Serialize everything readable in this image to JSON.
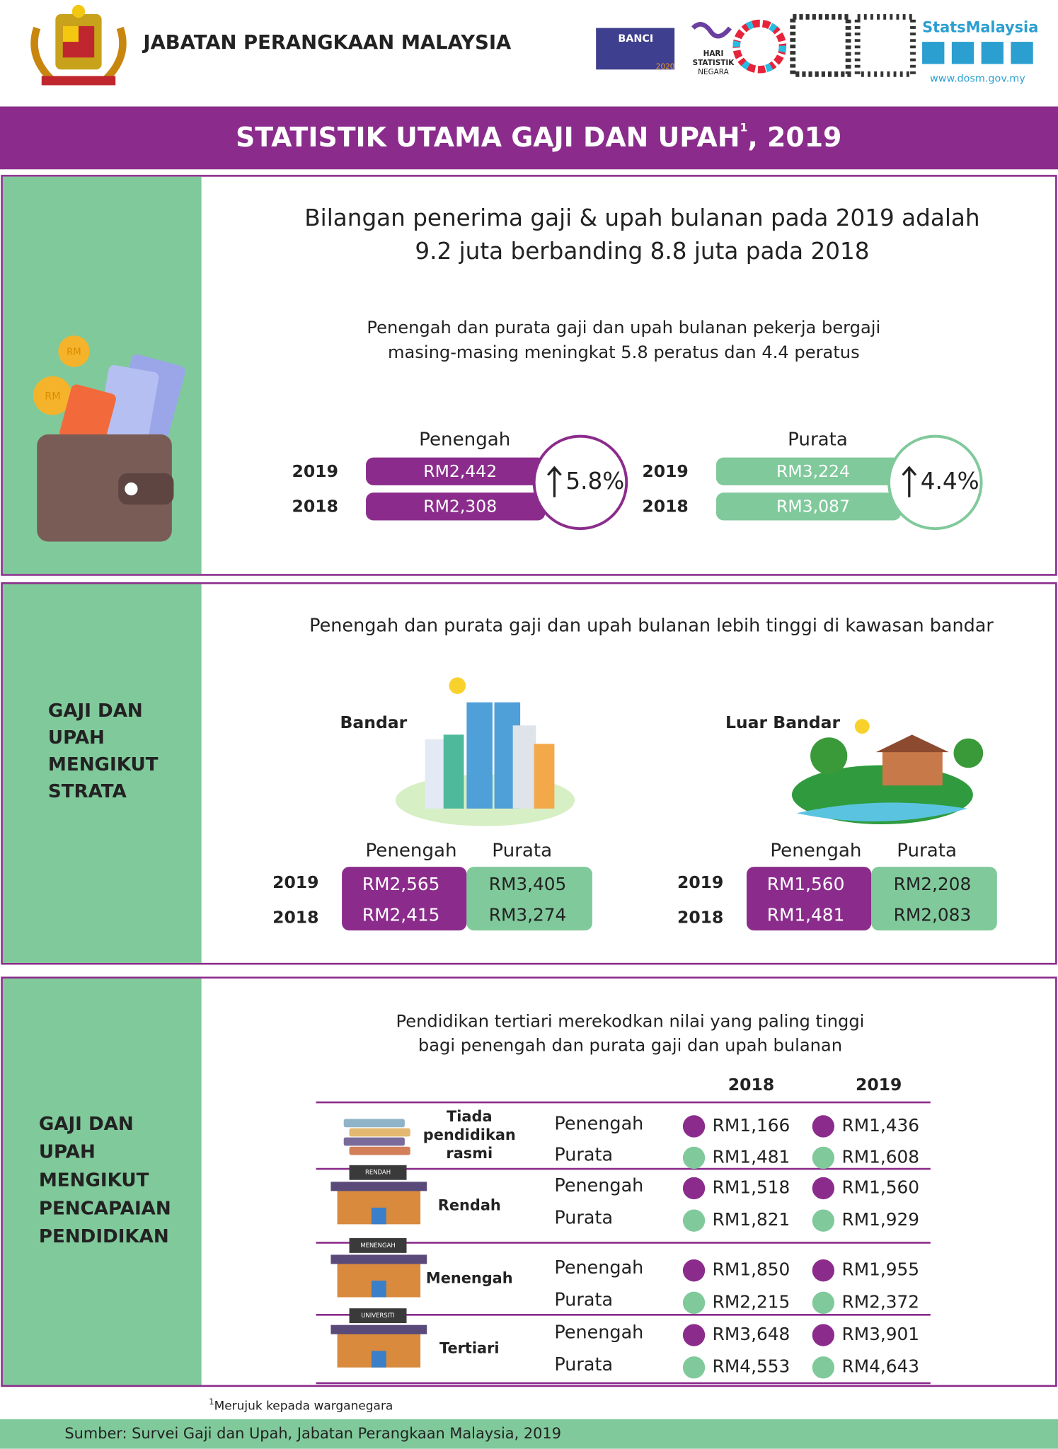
{
  "header": {
    "org": "JABATAN PERANGKAAN MALAYSIA",
    "banci": "BANCI",
    "banci_year": "2020",
    "hari": [
      "HARI",
      "STATISTIK",
      "NEGARA"
    ],
    "brand": "StatsMalaysia",
    "website": "www.dosm.gov.my"
  },
  "title": {
    "text": "STATISTIK UTAMA GAJI DAN UPAH",
    "sup": "1",
    "suffix": ", 2019"
  },
  "section1": {
    "headline": [
      "Bilangan penerima gaji & upah bulanan pada 2019 adalah",
      "9.2 juta berbanding 8.8 juta pada 2018"
    ],
    "subline": [
      "Penengah dan purata gaji dan upah bulanan pekerja bergaji",
      "masing-masing meningkat 5.8 peratus dan 4.4 peratus"
    ],
    "coin": "RM",
    "median": {
      "label": "Penengah",
      "rows": [
        {
          "year": "2019",
          "value": "RM2,442"
        },
        {
          "year": "2018",
          "value": "RM2,308"
        }
      ],
      "change": "5.8%"
    },
    "mean": {
      "label": "Purata",
      "rows": [
        {
          "year": "2019",
          "value": "RM3,224"
        },
        {
          "year": "2018",
          "value": "RM3,087"
        }
      ],
      "change": "4.4%"
    }
  },
  "section2": {
    "side_title": [
      "GAJI DAN",
      "UPAH",
      "MENGIKUT",
      "STRATA"
    ],
    "headline": "Penengah dan purata gaji dan upah bulanan lebih tinggi di kawasan bandar",
    "urban": {
      "label": "Bandar",
      "columns": [
        "Penengah",
        "Purata"
      ],
      "rows": [
        {
          "year": "2019",
          "median": "RM2,565",
          "mean": "RM3,405"
        },
        {
          "year": "2018",
          "median": "RM2,415",
          "mean": "RM3,274"
        }
      ]
    },
    "rural": {
      "label": "Luar Bandar",
      "columns": [
        "Penengah",
        "Purata"
      ],
      "rows": [
        {
          "year": "2019",
          "median": "RM1,560",
          "mean": "RM2,208"
        },
        {
          "year": "2018",
          "median": "RM1,481",
          "mean": "RM2,083"
        }
      ]
    }
  },
  "section3": {
    "side_title": [
      "GAJI DAN",
      "UPAH",
      "MENGIKUT",
      "PENCAPAIAN",
      "PENDIDIKAN"
    ],
    "headline": [
      "Pendidikan tertiari merekodkan nilai yang paling tinggi",
      "bagi penengah dan purata gaji dan upah bulanan"
    ],
    "years": [
      "2018",
      "2019"
    ],
    "groups": [
      {
        "label": [
          "Tiada",
          "pendidikan",
          "rasmi"
        ],
        "rows": [
          {
            "stat": "Penengah",
            "values": [
              "RM1,166",
              "RM1,436"
            ]
          },
          {
            "stat": "Purata",
            "values": [
              "RM1,481",
              "RM1,608"
            ]
          }
        ]
      },
      {
        "label": [
          "Rendah"
        ],
        "sign": "RENDAH",
        "rows": [
          {
            "stat": "Penengah",
            "values": [
              "RM1,518",
              "RM1,560"
            ]
          },
          {
            "stat": "Purata",
            "values": [
              "RM1,821",
              "RM1,929"
            ]
          }
        ]
      },
      {
        "label": [
          "Menengah"
        ],
        "sign": "MENENGAH",
        "rows": [
          {
            "stat": "Penengah",
            "values": [
              "RM1,850",
              "RM1,955"
            ]
          },
          {
            "stat": "Purata",
            "values": [
              "RM2,215",
              "RM2,372"
            ]
          }
        ]
      },
      {
        "label": [
          "Tertiari"
        ],
        "sign": "UNIVERSITI",
        "rows": [
          {
            "stat": "Penengah",
            "values": [
              "RM3,648",
              "RM3,901"
            ]
          },
          {
            "stat": "Purata",
            "values": [
              "RM4,553",
              "RM4,643"
            ]
          }
        ]
      }
    ]
  },
  "footnote": {
    "mark": "1",
    "text": "Merujuk kepada warganegara"
  },
  "source": "Sumber: Survei Gaji dan Upah, Jabatan Perangkaan Malaysia, 2019"
}
